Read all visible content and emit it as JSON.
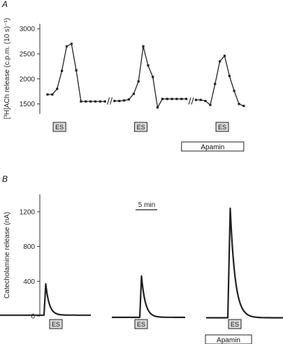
{
  "colors": {
    "trace": "#222222",
    "axis": "#333333",
    "es_fill": "#d9d9d9",
    "background": "#ffffff"
  },
  "panel_a": {
    "letter": "A"
  },
  "panel_b": {
    "letter": "B",
    "scale_bar_label": "5 min"
  },
  "chart_data": [
    {
      "type": "line",
      "panel": "A",
      "ylabel": "[³H]ACh release (c.p.m. (10 s)⁻¹)",
      "ylim": [
        1300,
        3100
      ],
      "yticks": [
        1500,
        2000,
        2500,
        3000
      ],
      "x_axis_breaks": 3,
      "segments": [
        {
          "x": [
            0,
            1,
            2,
            3,
            4,
            5,
            6,
            7,
            8,
            9,
            10,
            11,
            12
          ],
          "y": [
            1690,
            1690,
            1800,
            2160,
            2650,
            2700,
            2170,
            1550,
            1550,
            1550,
            1550,
            1550,
            1550
          ]
        },
        {
          "x": [
            14,
            15,
            16,
            17,
            18,
            19,
            20,
            21,
            22,
            23,
            24,
            25,
            26,
            27,
            28,
            29
          ],
          "y": [
            1560,
            1560,
            1570,
            1590,
            1700,
            1950,
            2650,
            2270,
            2040,
            1430,
            1600,
            1600,
            1600,
            1600,
            1600,
            1600
          ]
        },
        {
          "x": [
            31,
            32,
            33,
            34,
            35,
            36,
            37,
            38,
            39,
            40,
            41
          ],
          "y": [
            1580,
            1580,
            1560,
            1480,
            1900,
            2350,
            2460,
            2060,
            1760,
            1500,
            1460
          ]
        }
      ],
      "stimuli": [
        {
          "label": "ES",
          "x": 2.5
        },
        {
          "label": "ES",
          "x": 19.5
        },
        {
          "label": "ES",
          "x": 36.5
        }
      ],
      "annotation": {
        "label": "Apamin",
        "x_from": 28,
        "x_to": 41
      }
    },
    {
      "type": "line",
      "panel": "B",
      "ylabel": "Catecholamine release (nA)",
      "ylim": [
        0,
        1400
      ],
      "yticks": [
        0,
        400,
        800,
        1200
      ],
      "segments": [
        {
          "baseline": 10,
          "onset": 63,
          "peak_time": 2.5,
          "peak": 370,
          "tau": 5,
          "start": 0,
          "end": 130
        },
        {
          "baseline": -15,
          "onset": 200,
          "peak_time": 2.5,
          "peak": 460,
          "tau": 5.5,
          "start": 160,
          "end": 265
        },
        {
          "baseline": -20,
          "onset": 326,
          "peak_time": 3.5,
          "peak": 1240,
          "tau": 7,
          "start": 295,
          "end": 405
        }
      ],
      "stimuli": [
        {
          "label": "ES",
          "t": 80
        },
        {
          "label": "ES",
          "t": 202
        },
        {
          "label": "ES",
          "t": 336
        }
      ],
      "annotation": {
        "label": "Apamin",
        "t_from": 294,
        "t_to": 360
      }
    }
  ]
}
